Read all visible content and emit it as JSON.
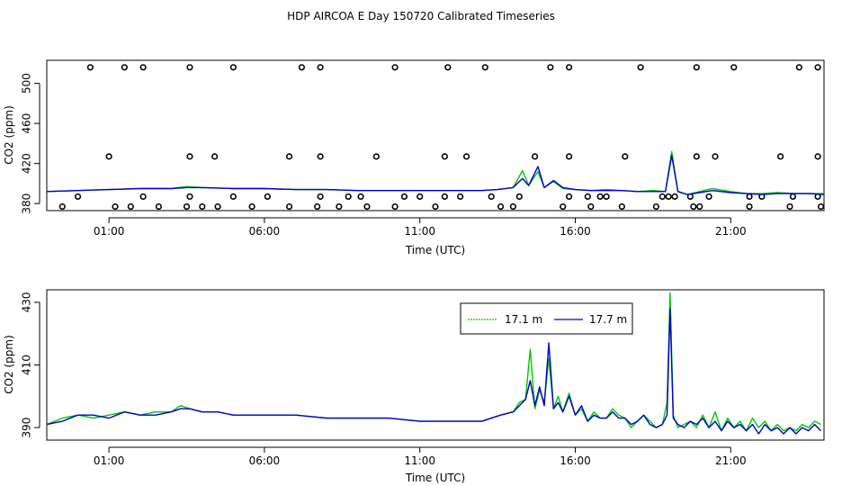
{
  "title": "HDP AIRCOA E  Day 150720  Calibrated Timeseries",
  "colors": {
    "green": "#00c800",
    "blue": "#0000cd",
    "axis": "#000000"
  },
  "chart_data": [
    {
      "id": "top",
      "type": "line+scatter",
      "xlabel": "Time (UTC)",
      "ylabel": "CO2 (ppm)",
      "xlim": [
        -1.0,
        24.0
      ],
      "ylim": [
        373,
        523
      ],
      "xticks": [
        1,
        6,
        11,
        16,
        21
      ],
      "xtick_labels": [
        "01:00",
        "06:00",
        "11:00",
        "16:00",
        "21:00"
      ],
      "yticks": [
        380,
        420,
        460,
        500
      ],
      "ytick_labels": [
        "380",
        "420",
        "460",
        "500"
      ],
      "scatter_series": {
        "name": "calibration points",
        "x": [
          0.4,
          1.5,
          2.1,
          3.6,
          5.0,
          7.2,
          7.8,
          10.2,
          11.9,
          13.1,
          15.2,
          15.8,
          18.1,
          19.9,
          21.1,
          23.2,
          23.8,
          1.0,
          3.6,
          4.4,
          6.8,
          7.8,
          9.6,
          11.8,
          12.5,
          14.7,
          15.8,
          17.6,
          19.9,
          20.5,
          22.6,
          23.8,
          0.0,
          2.1,
          3.6,
          5.0,
          6.1,
          7.8,
          8.7,
          9.1,
          10.5,
          11.0,
          11.8,
          12.3,
          13.3,
          14.2,
          15.8,
          16.4,
          16.8,
          17.0,
          18.8,
          19.0,
          19.2,
          19.7,
          20.3,
          21.6,
          22.0,
          23.0,
          23.8,
          -0.5,
          1.2,
          1.7,
          2.6,
          3.5,
          4.0,
          4.5,
          5.6,
          6.8,
          7.7,
          8.4,
          9.3,
          10.2,
          11.5,
          13.6,
          14.0,
          15.6,
          16.5,
          17.5,
          18.6,
          19.8,
          20.0,
          21.6,
          22.9,
          23.9
        ],
        "y": [
          516,
          516,
          516,
          516,
          516,
          516,
          516,
          516,
          516,
          516,
          516,
          516,
          516,
          516,
          516,
          516,
          516,
          427,
          427,
          427,
          427,
          427,
          427,
          427,
          427,
          427,
          427,
          427,
          427,
          427,
          427,
          427,
          387,
          387,
          387,
          387,
          387,
          387,
          387,
          387,
          387,
          387,
          387,
          387,
          387,
          387,
          387,
          387,
          387,
          387,
          387,
          387,
          387,
          387,
          387,
          387,
          387,
          387,
          387,
          377,
          377,
          377,
          377,
          377,
          377,
          377,
          377,
          377,
          377,
          377,
          377,
          377,
          377,
          377,
          377,
          377,
          377,
          377,
          377,
          377,
          377,
          377,
          377,
          377
        ]
      },
      "series": [
        {
          "name": "17.1 m",
          "color": "#00c800",
          "x": [
            -1.0,
            0.0,
            1.0,
            2.0,
            3.0,
            3.5,
            4.0,
            5.0,
            6.0,
            7.0,
            8.0,
            9.0,
            10.0,
            11.0,
            12.0,
            13.0,
            13.5,
            14.0,
            14.3,
            14.5,
            14.8,
            15.0,
            15.3,
            15.6,
            16.0,
            16.5,
            17.0,
            17.5,
            18.0,
            18.5,
            18.9,
            19.1,
            19.3,
            19.6,
            20.0,
            20.4,
            21.0,
            21.5,
            22.0,
            22.5,
            23.0,
            23.5,
            24.0
          ],
          "y": [
            392,
            393,
            394,
            395,
            395,
            397,
            396,
            395,
            395,
            394,
            394,
            393,
            393,
            393,
            393,
            393,
            394,
            396,
            413,
            398,
            412,
            396,
            402,
            395,
            394,
            393,
            394,
            393,
            392,
            393,
            392,
            432,
            392,
            389,
            392,
            395,
            392,
            390,
            390,
            391,
            390,
            390,
            390
          ]
        },
        {
          "name": "17.7 m",
          "color": "#0000cd",
          "x": [
            -1.0,
            0.0,
            1.0,
            2.0,
            3.0,
            3.5,
            4.0,
            5.0,
            6.0,
            7.0,
            8.0,
            9.0,
            10.0,
            11.0,
            12.0,
            13.0,
            13.5,
            14.0,
            14.3,
            14.5,
            14.8,
            15.0,
            15.3,
            15.6,
            16.0,
            16.5,
            17.0,
            17.5,
            18.0,
            18.5,
            18.9,
            19.1,
            19.3,
            19.6,
            20.0,
            20.4,
            21.0,
            21.5,
            22.0,
            22.5,
            23.0,
            23.5,
            24.0
          ],
          "y": [
            392,
            393,
            394,
            395,
            395,
            396,
            396,
            395,
            395,
            394,
            394,
            393,
            393,
            393,
            393,
            393,
            394,
            396,
            405,
            398,
            417,
            396,
            403,
            396,
            394,
            393,
            393,
            393,
            392,
            392,
            392,
            428,
            392,
            389,
            391,
            393,
            391,
            390,
            389,
            390,
            390,
            390,
            389
          ]
        }
      ]
    },
    {
      "id": "bottom",
      "type": "line",
      "xlabel": "Time (UTC)",
      "ylabel": "CO2 (ppm)",
      "xlim": [
        -1.0,
        24.0
      ],
      "ylim": [
        386,
        434
      ],
      "xticks": [
        1,
        6,
        11,
        16,
        21
      ],
      "xtick_labels": [
        "01:00",
        "06:00",
        "11:00",
        "16:00",
        "21:00"
      ],
      "yticks": [
        390,
        410,
        430
      ],
      "ytick_labels": [
        "390",
        "410",
        "430"
      ],
      "legend": {
        "position": "top-right",
        "entries": [
          "17.1 m",
          "17.7 m"
        ]
      },
      "series": [
        {
          "name": "17.1 m",
          "color": "#00c800",
          "x": [
            -1.0,
            -0.5,
            0.0,
            0.5,
            1.0,
            1.5,
            2.0,
            2.5,
            3.0,
            3.3,
            3.6,
            4.0,
            4.5,
            5.0,
            5.5,
            6.0,
            7.0,
            8.0,
            9.0,
            10.0,
            11.0,
            12.0,
            13.0,
            13.3,
            13.6,
            14.0,
            14.2,
            14.4,
            14.55,
            14.7,
            14.85,
            15.0,
            15.15,
            15.3,
            15.45,
            15.6,
            15.8,
            16.0,
            16.2,
            16.4,
            16.6,
            16.8,
            17.0,
            17.2,
            17.4,
            17.6,
            17.8,
            18.0,
            18.2,
            18.4,
            18.6,
            18.8,
            18.95,
            19.05,
            19.15,
            19.3,
            19.5,
            19.7,
            19.9,
            20.1,
            20.3,
            20.5,
            20.7,
            20.9,
            21.1,
            21.3,
            21.5,
            21.7,
            21.9,
            22.1,
            22.3,
            22.5,
            22.7,
            22.9,
            23.1,
            23.3,
            23.5,
            23.7,
            23.9
          ],
          "y": [
            391,
            393,
            394,
            393,
            394,
            395,
            394,
            395,
            395,
            397,
            396,
            395,
            395,
            394,
            394,
            394,
            394,
            393,
            393,
            393,
            392,
            392,
            392,
            393,
            394,
            395,
            398,
            399,
            415,
            396,
            402,
            398,
            412,
            396,
            400,
            395,
            401,
            394,
            396,
            392,
            395,
            393,
            393,
            396,
            394,
            393,
            390,
            392,
            394,
            392,
            390,
            391,
            398,
            433,
            394,
            390,
            391,
            392,
            390,
            394,
            390,
            395,
            389,
            393,
            390,
            392,
            389,
            393,
            390,
            392,
            389,
            391,
            389,
            390,
            389,
            391,
            390,
            392,
            391
          ]
        },
        {
          "name": "17.7 m",
          "color": "#0000cd",
          "x": [
            -1.0,
            -0.5,
            0.0,
            0.5,
            1.0,
            1.5,
            2.0,
            2.5,
            3.0,
            3.3,
            3.6,
            4.0,
            4.5,
            5.0,
            5.5,
            6.0,
            7.0,
            8.0,
            9.0,
            10.0,
            11.0,
            12.0,
            13.0,
            13.3,
            13.6,
            14.0,
            14.2,
            14.4,
            14.55,
            14.7,
            14.85,
            15.0,
            15.15,
            15.3,
            15.45,
            15.6,
            15.8,
            16.0,
            16.2,
            16.4,
            16.6,
            16.8,
            17.0,
            17.2,
            17.4,
            17.6,
            17.8,
            18.0,
            18.2,
            18.4,
            18.6,
            18.8,
            18.95,
            19.05,
            19.15,
            19.3,
            19.5,
            19.7,
            19.9,
            20.1,
            20.3,
            20.5,
            20.7,
            20.9,
            21.1,
            21.3,
            21.5,
            21.7,
            21.9,
            22.1,
            22.3,
            22.5,
            22.7,
            22.9,
            23.1,
            23.3,
            23.5,
            23.7,
            23.9
          ],
          "y": [
            391,
            392,
            394,
            394,
            393,
            395,
            394,
            394,
            395,
            396,
            396,
            395,
            395,
            394,
            394,
            394,
            394,
            393,
            393,
            393,
            392,
            392,
            392,
            393,
            394,
            395,
            397,
            399,
            405,
            397,
            403,
            397,
            417,
            396,
            398,
            395,
            400,
            394,
            397,
            392,
            394,
            393,
            393,
            395,
            393,
            393,
            391,
            392,
            394,
            391,
            390,
            391,
            394,
            428,
            393,
            391,
            390,
            392,
            391,
            393,
            390,
            392,
            389,
            392,
            390,
            391,
            389,
            391,
            388,
            391,
            389,
            390,
            388,
            390,
            388,
            390,
            389,
            391,
            389
          ]
        }
      ]
    }
  ]
}
